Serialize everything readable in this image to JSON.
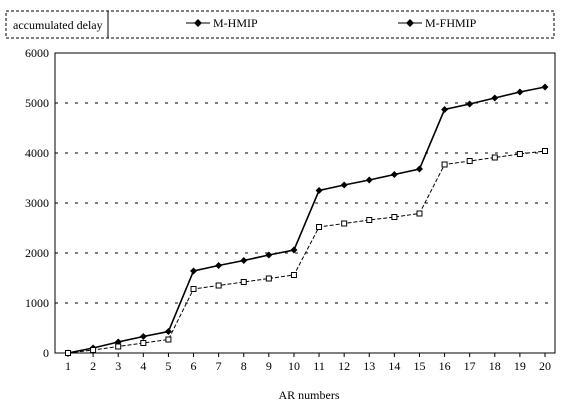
{
  "chart_data": {
    "type": "line",
    "title": "accumulated delay",
    "xlabel": "AR numbers",
    "ylabel": "",
    "x": [
      1,
      2,
      3,
      4,
      5,
      6,
      7,
      8,
      9,
      10,
      11,
      12,
      13,
      14,
      15,
      16,
      17,
      18,
      19,
      20
    ],
    "xlim": [
      1,
      20
    ],
    "ylim": [
      0,
      6000
    ],
    "yticks": [
      0,
      1000,
      2000,
      3000,
      4000,
      5000,
      6000
    ],
    "grid": "horizontal dashed",
    "legend": "top",
    "series": [
      {
        "name": "M-HMIP",
        "marker": "diamond",
        "line_style": "solid",
        "values": [
          0,
          100,
          220,
          330,
          430,
          1640,
          1750,
          1850,
          1960,
          2060,
          3250,
          3360,
          3460,
          3570,
          3680,
          4870,
          4980,
          5100,
          5220,
          5320
        ]
      },
      {
        "name": "M-FHMIP",
        "marker": "square",
        "line_style": "dashed",
        "values": [
          0,
          60,
          130,
          200,
          270,
          1280,
          1350,
          1420,
          1490,
          1560,
          2520,
          2590,
          2660,
          2720,
          2790,
          3770,
          3840,
          3910,
          3980,
          4040
        ]
      }
    ]
  }
}
